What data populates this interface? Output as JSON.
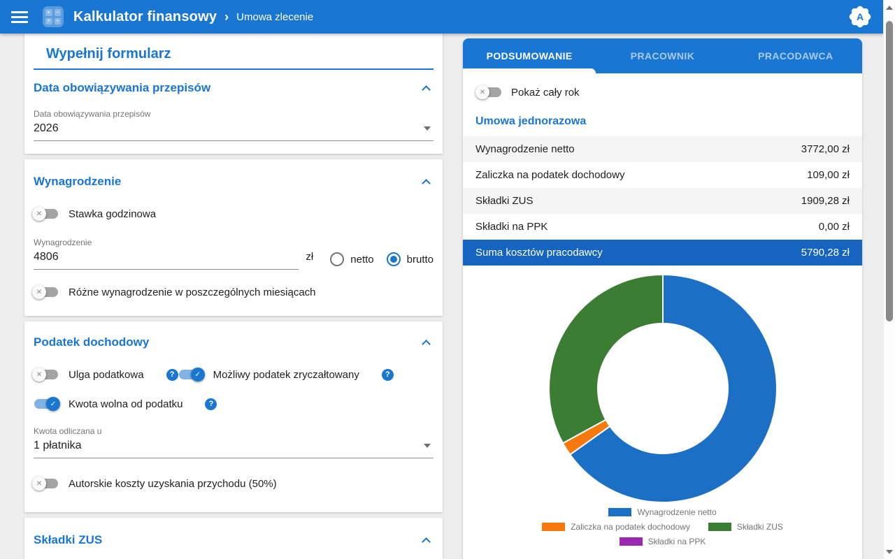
{
  "app_bar": {
    "title": "Kalkulator finansowy",
    "separator": "›",
    "breadcrumb": "Umowa zlecenie",
    "badge_letter": "A"
  },
  "icons": {
    "toggle_off": "✕",
    "toggle_on": "✓",
    "help": "?",
    "calc_glyphs": [
      "+",
      "−",
      "×",
      "÷"
    ]
  },
  "colors": {
    "primary": "#1976d2",
    "highlight_row": "#1565c0",
    "row_stripe": "#f5f5f5"
  },
  "form": {
    "title": "Wypełnij formularz",
    "section1": {
      "title": "Data obowiązywania przepisów",
      "field_label": "Data obowiązywania przepisów",
      "field_value": "2026"
    },
    "section2": {
      "title": "Wynagrodzenie",
      "toggle_hourly": "Stawka godzinowa",
      "toggle_hourly_on": false,
      "field_label": "Wynagrodzenie",
      "field_value": "4806",
      "currency": "zł",
      "radio_netto": "netto",
      "radio_brutto": "brutto",
      "radio_selected": "brutto",
      "toggle_various": "Różne wynagrodzenie w poszczególnych miesiącach",
      "toggle_various_on": false
    },
    "section3": {
      "title": "Podatek dochodowy",
      "toggle_relief": "Ulga podatkowa",
      "toggle_relief_on": false,
      "toggle_flat": "Możliwy podatek zryczałtowany",
      "toggle_flat_on": true,
      "toggle_taxfree": "Kwota wolna od podatku",
      "toggle_taxfree_on": true,
      "select_label": "Kwota odliczana u",
      "select_value": "1 płatnika",
      "toggle_authors": "Autorskie koszty uzyskania przychodu (50%)",
      "toggle_authors_on": false
    },
    "section4": {
      "title": "Składki ZUS"
    }
  },
  "summary": {
    "tabs": [
      {
        "label": "PODSUMOWANIE",
        "active": true
      },
      {
        "label": "PRACOWNIK",
        "active": false
      },
      {
        "label": "PRACODAWCA",
        "active": false
      }
    ],
    "toggle_full_year": "Pokaż cały rok",
    "toggle_full_year_on": false,
    "subtitle": "Umowa jednorazowa",
    "rows": [
      {
        "label": "Wynagrodzenie netto",
        "value": "3772,00 zł"
      },
      {
        "label": "Zaliczka na podatek dochodowy",
        "value": "109,00 zł"
      },
      {
        "label": "Składki ZUS",
        "value": "1909,28 zł"
      },
      {
        "label": "Składki na PPK",
        "value": "0,00 zł"
      },
      {
        "label": "Suma kosztów pracodawcy",
        "value": "5790,28 zł",
        "highlight": true
      }
    ]
  },
  "chart_data": {
    "type": "pie",
    "subtype": "donut",
    "labels": [
      "Wynagrodzenie netto",
      "Zaliczka na podatek dochodowy",
      "Składki ZUS",
      "Składki na PPK"
    ],
    "values": [
      3772.0,
      109.0,
      1909.28,
      0.0
    ],
    "colors": [
      "#1b70c5",
      "#f5790d",
      "#3a7d33",
      "#9c27b0"
    ],
    "start_angle_deg": 0,
    "direction": "clockwise",
    "inner_radius_ratio": 0.57,
    "legend_position": "bottom"
  }
}
